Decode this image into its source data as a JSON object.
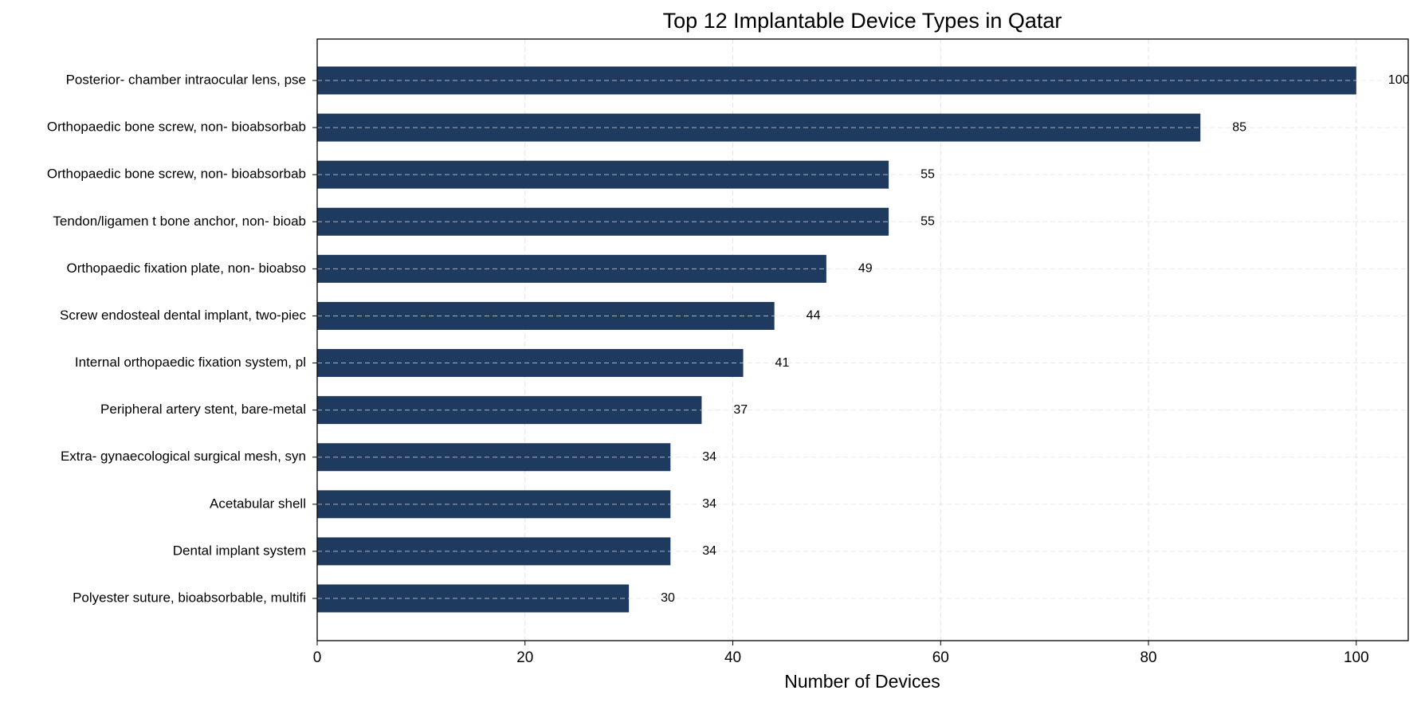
{
  "chart_data": {
    "type": "barh",
    "title": "Top 12 Implantable Device Types in Qatar",
    "x_label": "Number of Devices",
    "categories": [
      "Posterior- chamber intraocular lens, pse",
      "Orthopaedic bone screw, non- bioabsorbab",
      "Orthopaedic bone screw, non- bioabsorbab",
      "Tendon/ligamen t bone anchor, non- bioab",
      "Orthopaedic fixation plate, non- bioabso",
      "Screw endosteal dental implant, two-piec",
      "Internal orthopaedic fixation system, pl",
      "Peripheral artery stent, bare-metal",
      "Extra- gynaecological surgical mesh, syn",
      "Acetabular shell",
      "Dental implant system",
      "Polyester suture, bioabsorbable, multifi"
    ],
    "values": [
      100,
      85,
      55,
      55,
      49,
      44,
      41,
      37,
      34,
      34,
      34,
      30
    ],
    "color": "#1f3a5f",
    "xlim": [
      0,
      105
    ],
    "xticks": [
      0,
      20,
      40,
      60,
      80,
      100
    ],
    "grid": true
  }
}
